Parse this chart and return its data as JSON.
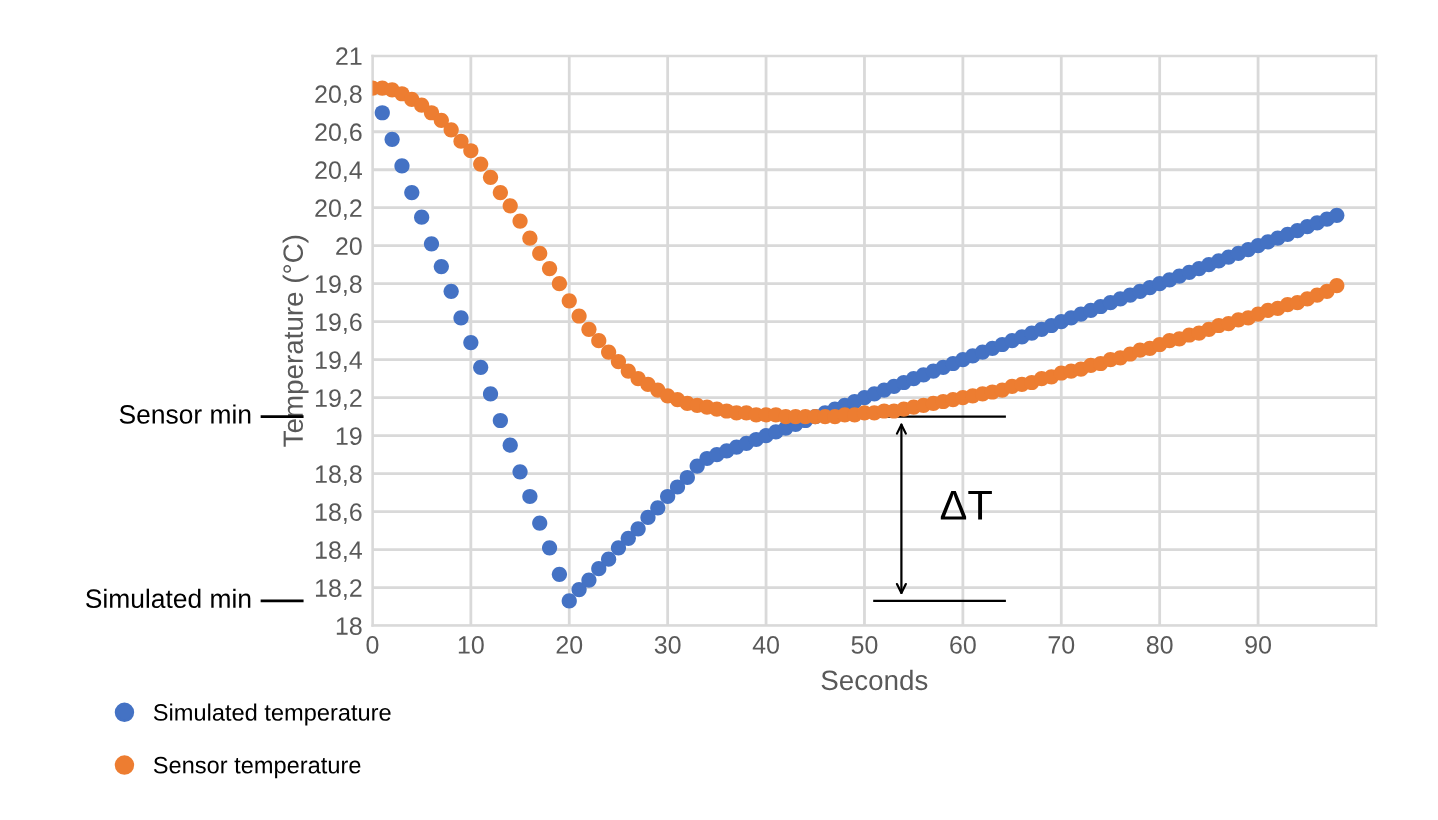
{
  "chart_data": {
    "type": "scatter",
    "xlabel": "Seconds",
    "ylabel": "Temperature (°C)",
    "x": [
      0,
      1,
      2,
      3,
      4,
      5,
      6,
      7,
      8,
      9,
      10,
      11,
      12,
      13,
      14,
      15,
      16,
      17,
      18,
      19,
      20,
      21,
      22,
      23,
      24,
      25,
      26,
      27,
      28,
      29,
      30,
      31,
      32,
      33,
      34,
      35,
      36,
      37,
      38,
      39,
      40,
      41,
      42,
      43,
      44,
      45,
      46,
      47,
      48,
      49,
      50,
      51,
      52,
      53,
      54,
      55,
      56,
      57,
      58,
      59,
      60,
      61,
      62,
      63,
      64,
      65,
      66,
      67,
      68,
      69,
      70,
      71,
      72,
      73,
      74,
      75,
      76,
      77,
      78,
      79,
      80,
      81,
      82,
      83,
      84,
      85,
      86,
      87,
      88,
      89,
      90,
      91,
      92,
      93,
      94,
      95,
      96,
      97,
      98
    ],
    "series": [
      {
        "name": "Simulated temperature",
        "color": "#4472c4",
        "values": [
          null,
          20.7,
          20.56,
          20.42,
          20.28,
          20.15,
          20.01,
          19.89,
          19.76,
          19.62,
          19.49,
          19.36,
          19.22,
          19.08,
          18.95,
          18.81,
          18.68,
          18.54,
          18.41,
          18.27,
          18.13,
          18.19,
          18.24,
          18.3,
          18.35,
          18.41,
          18.46,
          18.51,
          18.57,
          18.62,
          18.68,
          18.73,
          18.78,
          18.84,
          18.88,
          18.9,
          18.92,
          18.94,
          18.96,
          18.98,
          19.0,
          19.02,
          19.04,
          19.06,
          19.08,
          19.1,
          19.12,
          19.14,
          19.16,
          19.18,
          19.2,
          19.22,
          19.24,
          19.26,
          19.28,
          19.3,
          19.32,
          19.34,
          19.36,
          19.38,
          19.4,
          19.42,
          19.44,
          19.46,
          19.48,
          19.5,
          19.52,
          19.54,
          19.56,
          19.58,
          19.6,
          19.62,
          19.64,
          19.66,
          19.68,
          19.7,
          19.72,
          19.74,
          19.76,
          19.78,
          19.8,
          19.82,
          19.84,
          19.86,
          19.88,
          19.9,
          19.92,
          19.94,
          19.96,
          19.98,
          20.0,
          20.02,
          20.04,
          20.06,
          20.08,
          20.1,
          20.12,
          20.14,
          20.16
        ]
      },
      {
        "name": "Sensor temperature",
        "color": "#ed7d31",
        "values": [
          20.83,
          20.83,
          20.82,
          20.8,
          20.77,
          20.74,
          20.7,
          20.66,
          20.61,
          20.55,
          20.5,
          20.43,
          20.36,
          20.28,
          20.21,
          20.13,
          20.04,
          19.96,
          19.88,
          19.8,
          19.71,
          19.63,
          19.56,
          19.5,
          19.44,
          19.39,
          19.34,
          19.3,
          19.27,
          19.24,
          19.21,
          19.19,
          19.17,
          19.16,
          19.15,
          19.14,
          19.13,
          19.12,
          19.12,
          19.11,
          19.11,
          19.11,
          19.1,
          19.1,
          19.1,
          19.1,
          19.1,
          19.1,
          19.11,
          19.11,
          19.12,
          19.12,
          19.13,
          19.13,
          19.14,
          19.15,
          19.16,
          19.17,
          19.18,
          19.19,
          19.2,
          19.21,
          19.22,
          19.23,
          19.24,
          19.26,
          19.27,
          19.28,
          19.3,
          19.31,
          19.33,
          19.34,
          19.35,
          19.37,
          19.38,
          19.4,
          19.41,
          19.43,
          19.45,
          19.46,
          19.48,
          19.5,
          19.51,
          19.53,
          19.54,
          19.56,
          19.58,
          19.59,
          19.61,
          19.62,
          19.64,
          19.66,
          19.67,
          19.69,
          19.7,
          19.72,
          19.74,
          19.76,
          19.79
        ]
      }
    ],
    "xlim": [
      0,
      102
    ],
    "xticks": [
      0,
      10,
      20,
      30,
      40,
      50,
      60,
      70,
      80,
      90
    ],
    "ylim": [
      18,
      21
    ],
    "yticks": [
      18,
      {
        "value": 18.2,
        "label": "18,2"
      },
      {
        "value": 18.4,
        "label": "18,4"
      },
      {
        "value": 18.6,
        "label": "18,6"
      },
      {
        "value": 18.8,
        "label": "18,8"
      },
      19,
      {
        "value": 19.2,
        "label": "19,2"
      },
      {
        "value": 19.4,
        "label": "19,4"
      },
      {
        "value": 19.6,
        "label": "19,6"
      },
      {
        "value": 19.8,
        "label": "19,8"
      },
      20,
      {
        "value": 20.2,
        "label": "20,2"
      },
      {
        "value": 20.4,
        "label": "20,4"
      },
      {
        "value": 20.6,
        "label": "20,6"
      },
      {
        "value": 20.8,
        "label": "20,8"
      },
      21
    ],
    "grid": true,
    "legend": "bottom left",
    "marker": "circle",
    "annotations": [
      "Sensor min",
      "Simulated min",
      "ΔT"
    ]
  }
}
